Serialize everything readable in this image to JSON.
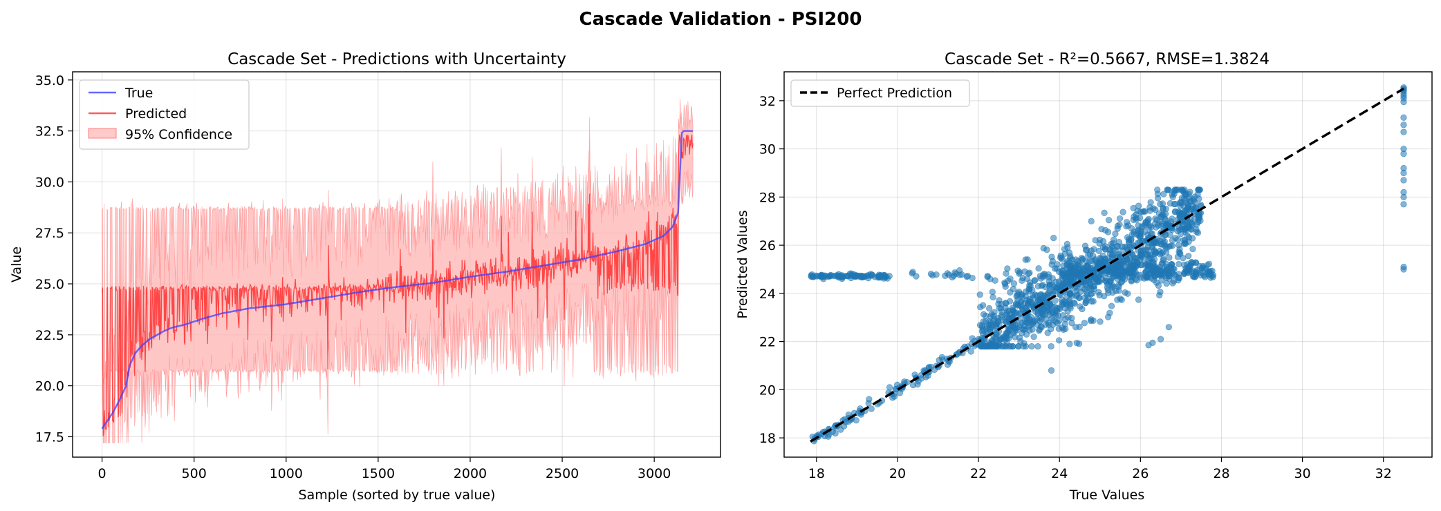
{
  "figure": {
    "title": "Cascade Validation - PSI200"
  },
  "chart_data": [
    {
      "type": "line",
      "title": "Cascade Set - Predictions with Uncertainty",
      "xlabel": "Sample (sorted by true value)",
      "ylabel": "Value",
      "xlim": [
        -160,
        3360
      ],
      "ylim": [
        16.5,
        35.4
      ],
      "x_ticks": [
        0,
        500,
        1000,
        1500,
        2000,
        2500,
        3000
      ],
      "y_ticks": [
        17.5,
        20.0,
        22.5,
        25.0,
        27.5,
        30.0,
        32.5,
        35.0
      ],
      "x_tick_labels": [
        "0",
        "500",
        "1000",
        "1500",
        "2000",
        "2500",
        "3000"
      ],
      "y_tick_labels": [
        "17.5",
        "20.0",
        "22.5",
        "25.0",
        "27.5",
        "30.0",
        "32.5",
        "35.0"
      ],
      "grid": true,
      "legend_position": "upper-left",
      "legend": [
        "True",
        "Predicted",
        "95% Confidence"
      ],
      "colors": {
        "true": "#4040ff",
        "predicted": "#ff3030",
        "confidence": "#ffb3b3"
      },
      "n_samples": 3210,
      "series": [
        {
          "name": "True",
          "x": [
            0,
            30,
            60,
            100,
            130,
            150,
            180,
            220,
            260,
            300,
            340,
            380,
            450,
            550,
            650,
            800,
            1000,
            1200,
            1400,
            1600,
            1800,
            2000,
            2200,
            2400,
            2600,
            2800,
            2950,
            3050,
            3100,
            3130,
            3140,
            3150,
            3160,
            3210
          ],
          "values": [
            17.9,
            18.3,
            18.7,
            19.4,
            20.0,
            21.0,
            21.6,
            22.0,
            22.3,
            22.5,
            22.7,
            22.85,
            23.0,
            23.3,
            23.55,
            23.8,
            24.0,
            24.3,
            24.6,
            24.85,
            25.05,
            25.35,
            25.6,
            25.9,
            26.2,
            26.6,
            26.95,
            27.35,
            27.8,
            28.5,
            30.5,
            32.4,
            32.5,
            32.5
          ]
        },
        {
          "name": "Predicted",
          "description_ref": "noisy prediction mostly near 24.8 at low index, tracking true value elsewhere; range approx 18-32.5"
        },
        {
          "name": "95% Confidence",
          "band_lower_typical": 20.8,
          "band_upper_typical": 28.7,
          "band_min": 17.2,
          "band_max": 34.4
        }
      ]
    },
    {
      "type": "scatter",
      "title": "Cascade Set - R²=0.5667, RMSE=1.3824",
      "xlabel": "True Values",
      "ylabel": "Predicted Values",
      "xlim": [
        17.2,
        33.2
      ],
      "ylim": [
        17.2,
        33.2
      ],
      "x_ticks": [
        18,
        20,
        22,
        24,
        26,
        28,
        30,
        32
      ],
      "y_ticks": [
        18,
        20,
        22,
        24,
        26,
        28,
        30,
        32
      ],
      "x_tick_labels": [
        "18",
        "20",
        "22",
        "24",
        "26",
        "28",
        "30",
        "32"
      ],
      "y_tick_labels": [
        "18",
        "20",
        "22",
        "24",
        "26",
        "28",
        "30",
        "32"
      ],
      "grid": true,
      "legend_position": "upper-left",
      "legend": [
        "Perfect Prediction"
      ],
      "perfect_line": [
        [
          17.85,
          17.85
        ],
        [
          32.5,
          32.5
        ]
      ],
      "colors": {
        "points": "#1f77b4",
        "line": "#000000"
      },
      "metrics": {
        "r2": 0.5667,
        "rmse": 1.3824
      }
    }
  ]
}
